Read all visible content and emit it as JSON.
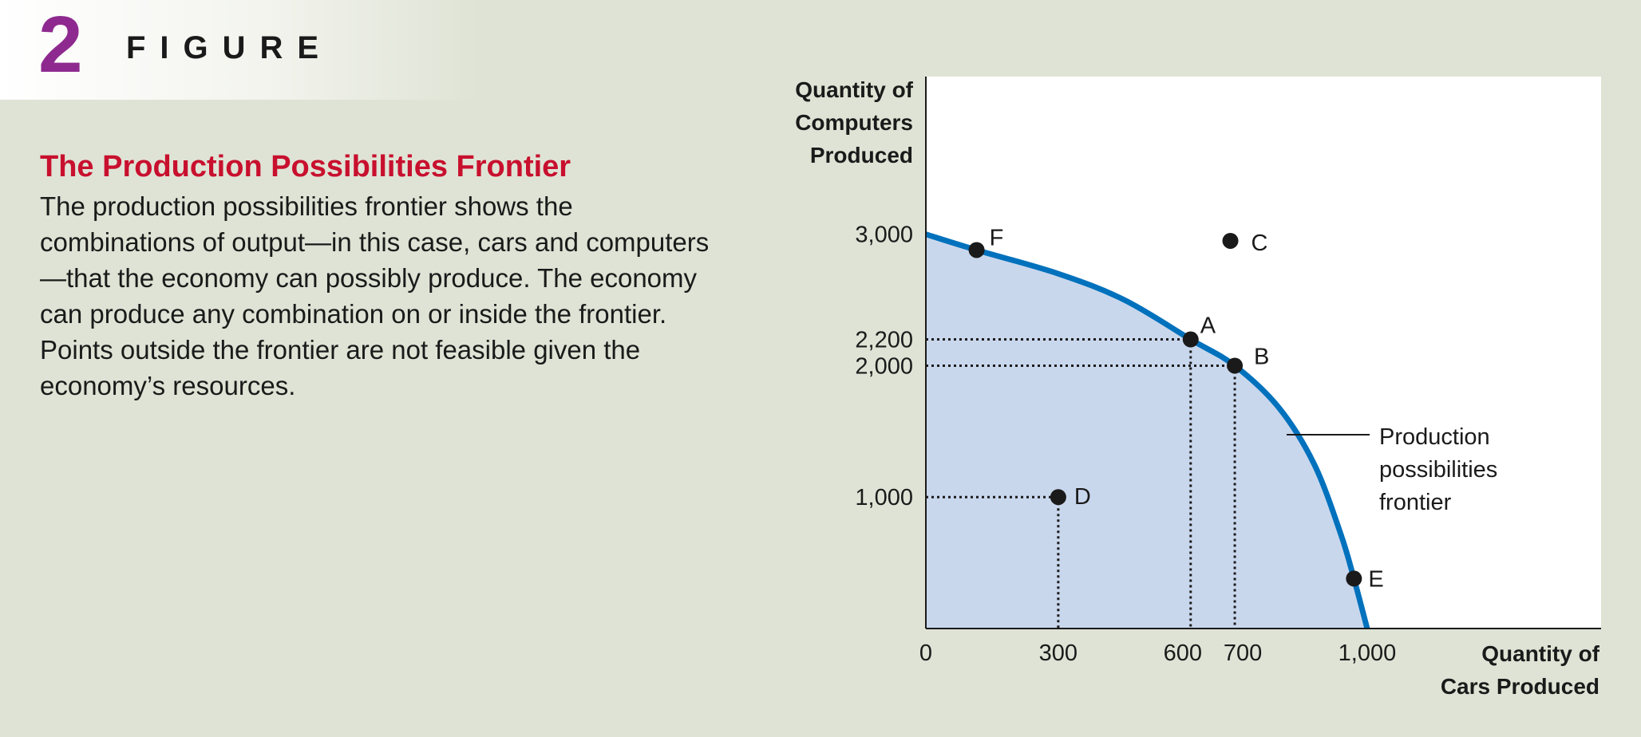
{
  "figure": {
    "number": "2",
    "label": "FIGURE"
  },
  "caption": {
    "title": "The Production Possibilities Frontier",
    "body": "The production possibilities frontier shows the combinations of output—in this case, cars and computers—that the economy can possibly produce. The economy can produce any combination on or inside the frontier. Points outside the frontier are not feasible given the economy’s resources."
  },
  "colors": {
    "curve": "#0071bc",
    "fill": "#c9d7ed",
    "title": "#c8102e",
    "figure_number": "#8e2a8f"
  },
  "chart_data": {
    "type": "area",
    "ylabel_lines": [
      "Quantity of",
      "Computers",
      "Produced"
    ],
    "xlabel_lines": [
      "Quantity of",
      "Cars Produced"
    ],
    "xlim": [
      0,
      1530
    ],
    "ylim": [
      0,
      4200
    ],
    "x_ticks": [
      {
        "value": 0,
        "label": "0"
      },
      {
        "value": 300,
        "label": "300"
      },
      {
        "value": 600,
        "label": "600"
      },
      {
        "value": 700,
        "label": "700"
      },
      {
        "value": 1000,
        "label": "1,000"
      }
    ],
    "y_ticks": [
      {
        "value": 1000,
        "label": "1,000"
      },
      {
        "value": 2000,
        "label": "2,000"
      },
      {
        "value": 2200,
        "label": "2,200"
      },
      {
        "value": 3000,
        "label": "3,000"
      }
    ],
    "frontier": [
      {
        "x": 0,
        "y": 3000
      },
      {
        "x": 115,
        "y": 2880
      },
      {
        "x": 300,
        "y": 2700
      },
      {
        "x": 450,
        "y": 2500
      },
      {
        "x": 600,
        "y": 2200
      },
      {
        "x": 700,
        "y": 2000
      },
      {
        "x": 800,
        "y": 1680
      },
      {
        "x": 880,
        "y": 1250
      },
      {
        "x": 940,
        "y": 720
      },
      {
        "x": 970,
        "y": 380
      },
      {
        "x": 1000,
        "y": 0
      }
    ],
    "points": [
      {
        "label": "F",
        "x": 115,
        "y": 2880
      },
      {
        "label": "C",
        "x": 690,
        "y": 2950
      },
      {
        "label": "A",
        "x": 600,
        "y": 2200
      },
      {
        "label": "B",
        "x": 700,
        "y": 2000
      },
      {
        "label": "D",
        "x": 300,
        "y": 1000
      },
      {
        "label": "E",
        "x": 970,
        "y": 380
      }
    ],
    "guides": [
      "A",
      "B",
      "D"
    ],
    "annotation_lines": [
      "Production",
      "possibilities",
      "frontier"
    ]
  }
}
